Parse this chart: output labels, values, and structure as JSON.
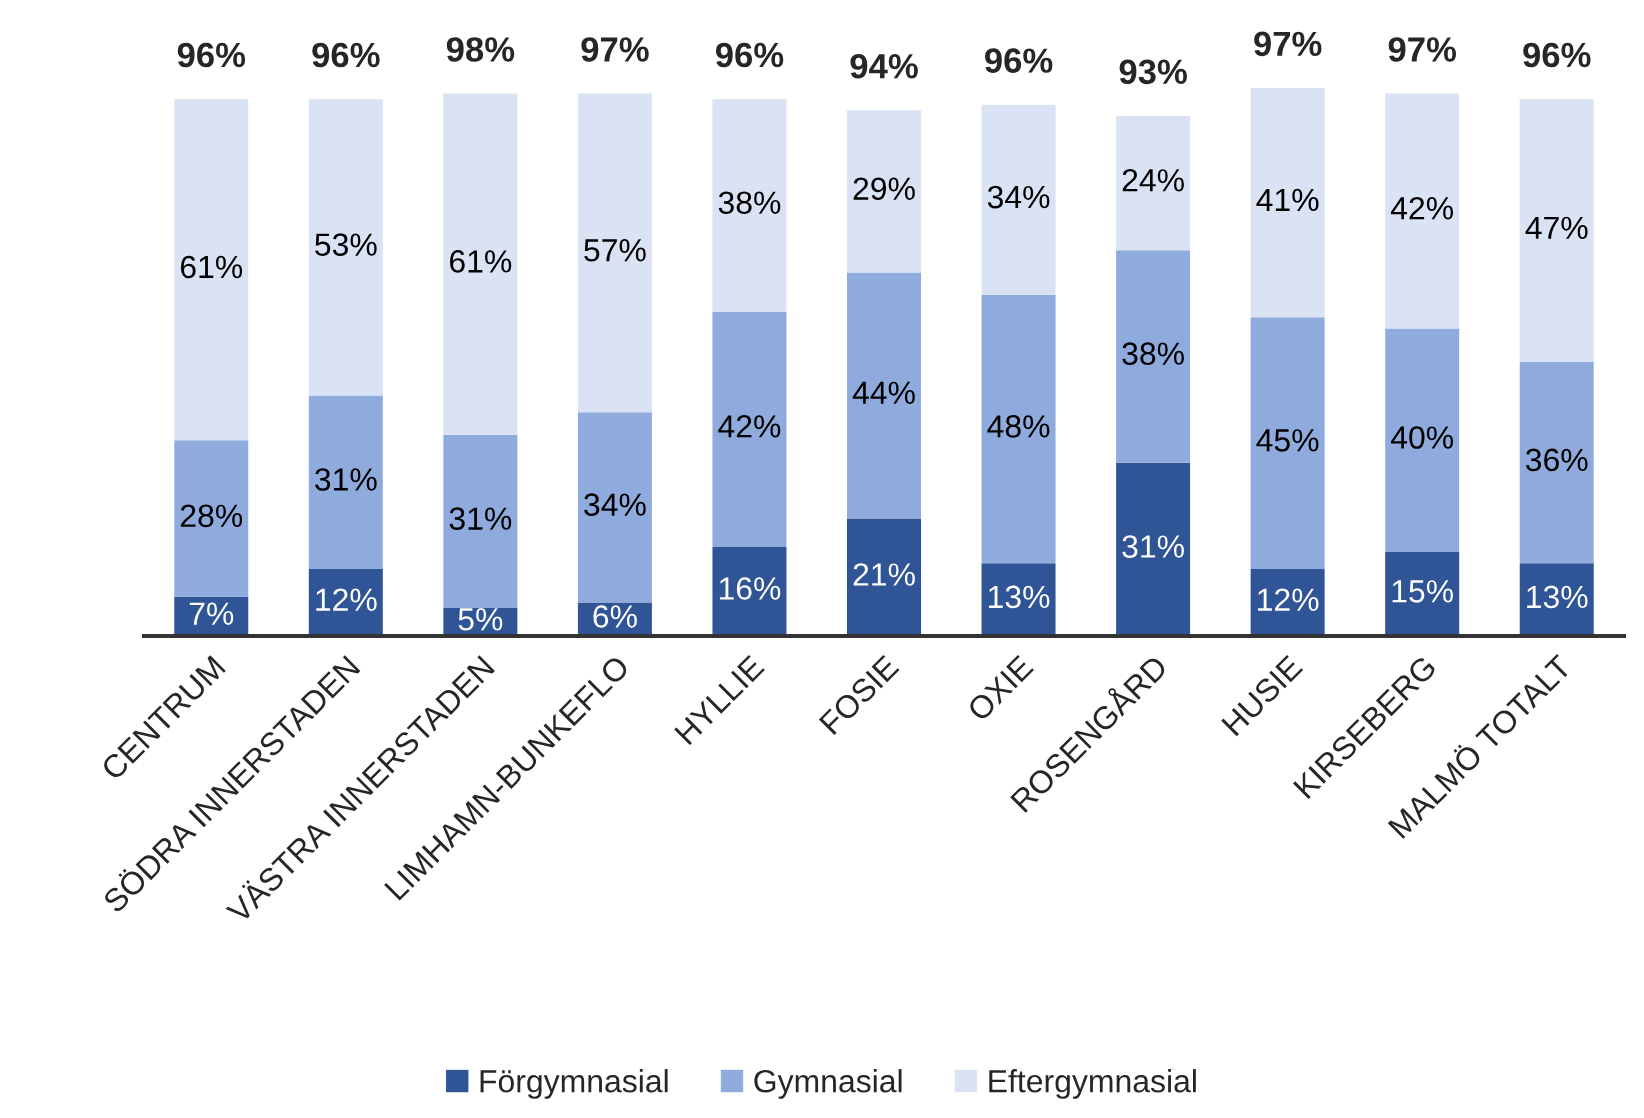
{
  "chart_data": {
    "type": "bar",
    "stacked": true,
    "categories": [
      "CENTRUM",
      "SÖDRA INNERSTADEN",
      "VÄSTRA INNERSTADEN",
      "LIMHAMN-BUNKEFLO",
      "HYLLIE",
      "FOSIE",
      "OXIE",
      "ROSENGÅRD",
      "HUSIE",
      "KIRSEBERG",
      "MALMÖ TOTALT"
    ],
    "series": [
      {
        "name": "Förgymnasial",
        "color": "#2f5597",
        "values": [
          7,
          12,
          5,
          6,
          16,
          21,
          13,
          31,
          12,
          15,
          13
        ],
        "value_labels": [
          "7%",
          "12%",
          "5%",
          "6%",
          "16%",
          "21%",
          "13%",
          "31%",
          "12%",
          "15%",
          "13%"
        ]
      },
      {
        "name": "Gymnasial",
        "color": "#8faadc",
        "values": [
          28,
          31,
          31,
          34,
          42,
          44,
          48,
          38,
          45,
          40,
          36
        ],
        "value_labels": [
          "28%",
          "31%",
          "31%",
          "34%",
          "42%",
          "44%",
          "48%",
          "38%",
          "45%",
          "40%",
          "36%"
        ]
      },
      {
        "name": "Eftergymnasial",
        "color": "#dae3f3",
        "values": [
          61,
          53,
          61,
          57,
          38,
          29,
          34,
          24,
          41,
          42,
          47
        ],
        "value_labels": [
          "61%",
          "53%",
          "61%",
          "57%",
          "38%",
          "29%",
          "34%",
          "24%",
          "41%",
          "42%",
          "47%"
        ]
      }
    ],
    "totals": [
      "96%",
      "96%",
      "98%",
      "97%",
      "96%",
      "94%",
      "96%",
      "93%",
      "97%",
      "97%",
      "96%"
    ],
    "legend": "bottom",
    "grid": false
  }
}
